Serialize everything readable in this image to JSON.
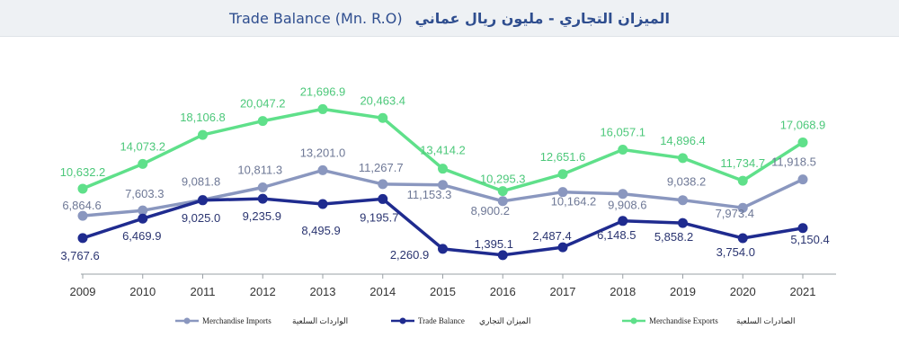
{
  "title": {
    "en": "Trade Balance (Mn. R.O)",
    "ar": "الميزان التجاري - مليون ريال عماني"
  },
  "colors": {
    "exports": "#5fe08a",
    "imports": "#8a97bf",
    "balance": "#1f2b8f"
  },
  "chart_data": {
    "type": "line",
    "title": "Trade Balance (Mn. R.O)",
    "categories": [
      "2009",
      "2010",
      "2011",
      "2012",
      "2013",
      "2014",
      "2015",
      "2016",
      "2017",
      "2018",
      "2019",
      "2020",
      "2021"
    ],
    "series": [
      {
        "name": "Merchandise Exports",
        "name_ar": "الصادرات السلعية",
        "key": "exports",
        "values": [
          10632.2,
          14073.2,
          18106.8,
          20047.2,
          21696.9,
          20463.4,
          13414.2,
          10295.3,
          12651.6,
          16057.1,
          14896.4,
          11734.7,
          17068.9
        ],
        "labels": [
          "10,632.2",
          "14,073.2",
          "18,106.8",
          "20,047.2",
          "21,696.9",
          "20,463.4",
          "13,414.2",
          "10,295.3",
          "12,651.6",
          "16,057.1",
          "14,896.4",
          "11,734.7",
          "17,068.9"
        ]
      },
      {
        "name": "Merchandise Imports",
        "name_ar": "الواردات السلعية",
        "key": "imports",
        "values": [
          6864.6,
          7603.3,
          9081.8,
          10811.3,
          13201.0,
          11267.7,
          11153.3,
          8900.2,
          10164.2,
          9908.6,
          9038.2,
          7973.4,
          11918.5
        ],
        "labels": [
          "6,864.6",
          "7,603.3",
          "9,081.8",
          "10,811.3",
          "13,201.0",
          "11,267.7",
          "11,153.3",
          "8,900.2",
          "10,164.2",
          "9,908.6",
          "9,038.2",
          "7,973.4",
          "11,918.5"
        ]
      },
      {
        "name": "Trade Balance",
        "name_ar": "الميزان التجاري",
        "key": "balance",
        "values": [
          3767.6,
          6469.9,
          9025.0,
          9235.9,
          8495.9,
          9195.7,
          2260.9,
          1395.1,
          2487.4,
          6148.5,
          5858.2,
          3754.0,
          5150.4
        ],
        "labels": [
          "3,767.6",
          "6,469.9",
          "9,025.0",
          "9,235.9",
          "8,495.9",
          "9,195.7",
          "2,260.9",
          "1,395.1",
          "2,487.4",
          "6,148.5",
          "5,858.2",
          "3,754.0",
          "5,150.4"
        ]
      }
    ],
    "legend_order": [
      "imports",
      "balance",
      "exports"
    ],
    "legend_position": "bottom",
    "grid": false
  }
}
